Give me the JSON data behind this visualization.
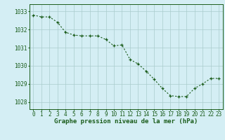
{
  "x": [
    0,
    1,
    2,
    3,
    4,
    5,
    6,
    7,
    8,
    9,
    10,
    11,
    12,
    13,
    14,
    15,
    16,
    17,
    18,
    19,
    20,
    21,
    22,
    23
  ],
  "y": [
    1032.8,
    1032.7,
    1032.7,
    1032.4,
    1031.85,
    1031.7,
    1031.65,
    1031.65,
    1031.65,
    1031.45,
    1031.1,
    1031.15,
    1030.35,
    1030.1,
    1029.7,
    1029.25,
    1028.75,
    1028.35,
    1028.3,
    1028.3,
    1028.75,
    1029.0,
    1029.3,
    1029.3
  ],
  "line_color": "#1a5c1a",
  "marker": "+",
  "marker_size": 3.5,
  "marker_linewidth": 0.9,
  "bg_color": "#d4eef4",
  "grid_color": "#aacccc",
  "ylabel_ticks": [
    1028,
    1029,
    1030,
    1031,
    1032,
    1033
  ],
  "xlabel_label": "Graphe pression niveau de la mer (hPa)",
  "xlim": [
    -0.5,
    23.5
  ],
  "ylim": [
    1027.6,
    1033.4
  ],
  "tick_color": "#1a5c1a",
  "label_color": "#1a5c1a",
  "label_fontsize": 5.5,
  "xlabel_fontsize": 6.5,
  "linewidth": 0.8
}
